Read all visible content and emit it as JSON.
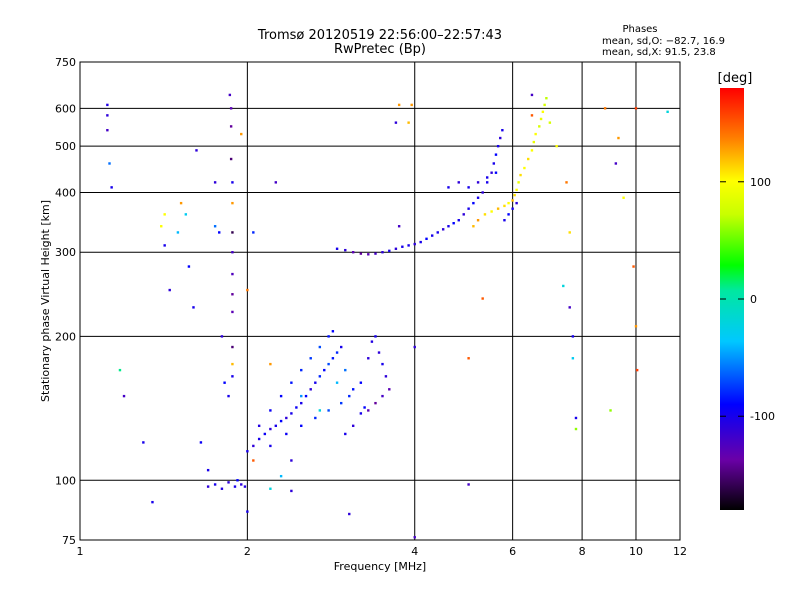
{
  "chart_data": {
    "type": "scatter",
    "title": "Tromsø 20120519 22:56:00–22:57:43",
    "subtitle": "RwPretec (Bp)",
    "xlabel": "Frequency [MHz]",
    "ylabel": "Stationary phase Virtual Height [km]",
    "x_scale": "log",
    "y_scale": "log",
    "xlim": [
      1,
      12
    ],
    "ylim": [
      75,
      750
    ],
    "x_ticks": [
      1,
      2,
      4,
      6,
      8,
      10,
      12
    ],
    "y_ticks": [
      75,
      100,
      200,
      300,
      400,
      500,
      600,
      750
    ],
    "grid": true,
    "colorbar": {
      "label": "[deg]",
      "range": [
        -180,
        180
      ],
      "ticks": [
        100,
        0,
        -100
      ]
    },
    "stats": {
      "heading": "Phases",
      "line1": "mean, sd,O: −82.7, 16.9",
      "line2": "mean, sd,X:  91.5, 23.8"
    },
    "series": [
      {
        "values": [
          [
            1.12,
            580,
            -110
          ],
          [
            1.12,
            540,
            -120
          ],
          [
            1.13,
            460,
            -60
          ],
          [
            1.14,
            410,
            -100
          ],
          [
            1.12,
            610,
            -105
          ],
          [
            1.18,
            170,
            10
          ],
          [
            1.2,
            150,
            -120
          ],
          [
            1.3,
            120,
            -100
          ],
          [
            1.42,
            310,
            -100
          ],
          [
            1.45,
            250,
            -110
          ],
          [
            1.5,
            330,
            -40
          ],
          [
            1.52,
            380,
            130
          ],
          [
            1.55,
            360,
            -30
          ],
          [
            1.57,
            280,
            -90
          ],
          [
            1.6,
            230,
            -100
          ],
          [
            1.62,
            490,
            -110
          ],
          [
            1.65,
            120,
            -95
          ],
          [
            1.7,
            105,
            -100
          ],
          [
            1.75,
            420,
            -110
          ],
          [
            1.75,
            340,
            -60
          ],
          [
            1.78,
            330,
            -90
          ],
          [
            1.8,
            200,
            -110
          ],
          [
            1.82,
            160,
            -90
          ],
          [
            1.85,
            150,
            -100
          ],
          [
            1.86,
            640,
            -120
          ],
          [
            1.87,
            600,
            -130
          ],
          [
            1.87,
            550,
            -140
          ],
          [
            1.87,
            470,
            -150
          ],
          [
            1.88,
            420,
            -100
          ],
          [
            1.88,
            380,
            130
          ],
          [
            1.88,
            330,
            -160
          ],
          [
            1.88,
            300,
            -120
          ],
          [
            1.88,
            270,
            -125
          ],
          [
            1.88,
            245,
            -140
          ],
          [
            1.88,
            225,
            -130
          ],
          [
            1.88,
            190,
            -150
          ],
          [
            1.88,
            175,
            120
          ],
          [
            1.88,
            165,
            -100
          ],
          [
            1.95,
            530,
            130
          ],
          [
            2.05,
            330,
            -80
          ],
          [
            2.25,
            420,
            -120
          ],
          [
            2.4,
            110,
            -110
          ],
          [
            2.4,
            95,
            -110
          ],
          [
            1.7,
            97,
            -110
          ],
          [
            1.75,
            98,
            -100
          ],
          [
            1.8,
            96,
            -105
          ],
          [
            1.85,
            99,
            -110
          ],
          [
            1.9,
            97,
            -100
          ],
          [
            1.95,
            98,
            -110
          ],
          [
            1.92,
            100,
            -90
          ],
          [
            1.98,
            97,
            -105
          ],
          [
            2.0,
            115,
            -100
          ],
          [
            2.05,
            118,
            -110
          ],
          [
            2.1,
            122,
            -100
          ],
          [
            2.15,
            125,
            -95
          ],
          [
            2.2,
            128,
            -110
          ],
          [
            2.25,
            130,
            -100
          ],
          [
            2.3,
            133,
            -90
          ],
          [
            2.35,
            135,
            -110
          ],
          [
            2.4,
            138,
            -100
          ],
          [
            2.45,
            142,
            -95
          ],
          [
            2.5,
            145,
            -100
          ],
          [
            2.55,
            150,
            -90
          ],
          [
            2.6,
            155,
            -110
          ],
          [
            2.65,
            160,
            -100
          ],
          [
            2.7,
            165,
            -80
          ],
          [
            2.75,
            170,
            -90
          ],
          [
            2.8,
            175,
            -70
          ],
          [
            2.85,
            180,
            -85
          ],
          [
            2.9,
            185,
            -80
          ],
          [
            2.95,
            190,
            -100
          ],
          [
            2.1,
            130,
            -105
          ],
          [
            2.2,
            140,
            -95
          ],
          [
            2.3,
            150,
            -90
          ],
          [
            2.4,
            160,
            -85
          ],
          [
            2.5,
            170,
            -80
          ],
          [
            2.6,
            180,
            -75
          ],
          [
            2.7,
            190,
            -70
          ],
          [
            2.8,
            200,
            -85
          ],
          [
            2.85,
            205,
            -90
          ],
          [
            2.2,
            118,
            -100
          ],
          [
            2.35,
            125,
            -95
          ],
          [
            2.5,
            130,
            -90
          ],
          [
            2.65,
            135,
            -80
          ],
          [
            2.8,
            140,
            -70
          ],
          [
            2.95,
            145,
            -75
          ],
          [
            3.05,
            150,
            -80
          ],
          [
            3.1,
            155,
            -85
          ],
          [
            3.2,
            160,
            -90
          ],
          [
            3.3,
            180,
            -110
          ],
          [
            3.35,
            195,
            -105
          ],
          [
            3.4,
            200,
            -100
          ],
          [
            3.45,
            185,
            -110
          ],
          [
            3.5,
            175,
            -100
          ],
          [
            3.3,
            140,
            -130
          ],
          [
            3.4,
            145,
            -140
          ],
          [
            3.5,
            150,
            -120
          ],
          [
            3.6,
            155,
            -130
          ],
          [
            3.55,
            165,
            -110
          ],
          [
            3.0,
            125,
            -100
          ],
          [
            3.1,
            130,
            -110
          ],
          [
            3.2,
            138,
            -100
          ],
          [
            3.25,
            142,
            -90
          ],
          [
            2.9,
            305,
            -100
          ],
          [
            3.0,
            303,
            -110
          ],
          [
            3.1,
            300,
            -130
          ],
          [
            3.2,
            298,
            -140
          ],
          [
            3.3,
            297,
            -130
          ],
          [
            3.4,
            298,
            -120
          ],
          [
            3.5,
            300,
            -110
          ],
          [
            3.6,
            302,
            -100
          ],
          [
            3.7,
            305,
            -110
          ],
          [
            3.8,
            308,
            -100
          ],
          [
            3.9,
            310,
            -100
          ],
          [
            4.0,
            312,
            -110
          ],
          [
            4.1,
            315,
            -100
          ],
          [
            4.2,
            320,
            -90
          ],
          [
            4.3,
            325,
            -100
          ],
          [
            4.4,
            330,
            -100
          ],
          [
            4.5,
            335,
            -110
          ],
          [
            4.6,
            340,
            -100
          ],
          [
            4.7,
            345,
            -90
          ],
          [
            4.8,
            350,
            -100
          ],
          [
            4.9,
            360,
            -110
          ],
          [
            5.0,
            370,
            -100
          ],
          [
            5.1,
            380,
            -90
          ],
          [
            5.2,
            390,
            -100
          ],
          [
            5.3,
            400,
            -110
          ],
          [
            5.4,
            420,
            -100
          ],
          [
            5.5,
            440,
            -110
          ],
          [
            5.55,
            460,
            -100
          ],
          [
            5.6,
            480,
            -90
          ],
          [
            5.65,
            500,
            -100
          ],
          [
            5.7,
            520,
            -110
          ],
          [
            5.75,
            540,
            -100
          ],
          [
            4.6,
            410,
            -100
          ],
          [
            4.8,
            420,
            -110
          ],
          [
            5.0,
            410,
            -100
          ],
          [
            5.2,
            420,
            -110
          ],
          [
            5.4,
            430,
            -100
          ],
          [
            5.6,
            440,
            -90
          ],
          [
            5.1,
            340,
            120
          ],
          [
            5.2,
            350,
            130
          ],
          [
            5.35,
            360,
            110
          ],
          [
            5.5,
            365,
            100
          ],
          [
            5.65,
            370,
            120
          ],
          [
            5.8,
            375,
            110
          ],
          [
            5.9,
            380,
            100
          ],
          [
            6.0,
            385,
            120
          ],
          [
            6.05,
            395,
            110
          ],
          [
            6.1,
            405,
            100
          ],
          [
            6.15,
            420,
            90
          ],
          [
            6.2,
            435,
            110
          ],
          [
            6.3,
            450,
            100
          ],
          [
            6.4,
            470,
            110
          ],
          [
            6.5,
            490,
            100
          ],
          [
            6.55,
            510,
            90
          ],
          [
            6.6,
            530,
            100
          ],
          [
            6.7,
            550,
            80
          ],
          [
            6.75,
            570,
            90
          ],
          [
            6.8,
            590,
            100
          ],
          [
            6.85,
            610,
            80
          ],
          [
            6.9,
            630,
            70
          ],
          [
            5.8,
            350,
            -100
          ],
          [
            5.9,
            360,
            -90
          ],
          [
            6.0,
            370,
            -100
          ],
          [
            6.1,
            380,
            -110
          ],
          [
            6.5,
            640,
            -120
          ],
          [
            3.7,
            560,
            -110
          ],
          [
            3.75,
            610,
            130
          ],
          [
            3.9,
            560,
            120
          ],
          [
            3.95,
            610,
            130
          ],
          [
            3.75,
            340,
            -120
          ],
          [
            4.0,
            190,
            -110
          ],
          [
            4.0,
            76,
            -120
          ],
          [
            5.0,
            180,
            150
          ],
          [
            5.0,
            98,
            -120
          ],
          [
            5.3,
            240,
            150
          ],
          [
            6.5,
            580,
            150
          ],
          [
            7.0,
            560,
            80
          ],
          [
            7.2,
            500,
            100
          ],
          [
            7.5,
            420,
            140
          ],
          [
            7.6,
            330,
            110
          ],
          [
            7.6,
            230,
            -120
          ],
          [
            7.7,
            200,
            -100
          ],
          [
            7.7,
            180,
            -30
          ],
          [
            7.8,
            135,
            -100
          ],
          [
            7.8,
            128,
            60
          ],
          [
            7.4,
            255,
            -20
          ],
          [
            8.8,
            600,
            140
          ],
          [
            9.0,
            140,
            60
          ],
          [
            9.2,
            460,
            -120
          ],
          [
            9.3,
            520,
            130
          ],
          [
            9.5,
            390,
            100
          ],
          [
            10.0,
            600,
            160
          ],
          [
            10.0,
            210,
            130
          ],
          [
            10.05,
            170,
            160
          ],
          [
            9.9,
            280,
            150
          ],
          [
            11.4,
            590,
            -20
          ],
          [
            2.0,
            250,
            140
          ],
          [
            2.05,
            110,
            150
          ],
          [
            2.2,
            175,
            130
          ],
          [
            1.42,
            360,
            100
          ],
          [
            1.4,
            340,
            100
          ],
          [
            2.5,
            150,
            -50
          ],
          [
            2.7,
            140,
            -20
          ],
          [
            2.9,
            160,
            -40
          ],
          [
            3.0,
            170,
            -60
          ],
          [
            2.2,
            96,
            -20
          ],
          [
            2.3,
            102,
            -40
          ],
          [
            1.35,
            90,
            -100
          ],
          [
            2.0,
            86,
            -100
          ],
          [
            3.05,
            85,
            -110
          ]
        ]
      }
    ]
  }
}
